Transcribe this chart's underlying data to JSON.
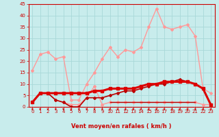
{
  "title": "",
  "xlabel": "Vent moyen/en rafales ( km/h )",
  "ylabel": "",
  "bg_color": "#c8ecec",
  "grid_color": "#a8d8d8",
  "x_ticks": [
    0,
    1,
    2,
    3,
    4,
    5,
    6,
    7,
    8,
    9,
    10,
    11,
    12,
    13,
    14,
    15,
    16,
    17,
    18,
    19,
    20,
    21,
    22,
    23
  ],
  "y_ticks": [
    0,
    5,
    10,
    15,
    20,
    25,
    30,
    35,
    40,
    45
  ],
  "xlim": [
    -0.5,
    23.5
  ],
  "ylim": [
    0,
    45
  ],
  "lines": [
    {
      "x": [
        0,
        1,
        2,
        3,
        4,
        5,
        6,
        7,
        8,
        9,
        10,
        11,
        12,
        13,
        14,
        15,
        16,
        17,
        18,
        19,
        20,
        21,
        22,
        23
      ],
      "y": [
        16,
        23,
        24,
        21,
        22,
        3,
        3,
        10,
        15,
        21,
        26,
        22,
        25,
        24,
        26,
        35,
        43,
        35,
        34,
        35,
        36,
        31,
        8,
        6
      ],
      "color": "#ff9999",
      "lw": 1.0,
      "marker": "D",
      "ms": 2.0,
      "zorder": 3
    },
    {
      "x": [
        0,
        1,
        2,
        3,
        4,
        5,
        6,
        7,
        8,
        9,
        10,
        11,
        12,
        13,
        14,
        15,
        16,
        17,
        18,
        19,
        20,
        21,
        22,
        23
      ],
      "y": [
        2,
        6,
        6,
        3,
        2,
        1,
        1,
        4,
        9,
        1,
        2,
        2,
        2,
        2,
        2,
        2,
        2,
        2,
        2,
        2,
        2,
        2,
        1,
        1
      ],
      "color": "#ff9999",
      "lw": 1.0,
      "marker": "D",
      "ms": 2.0,
      "zorder": 3
    },
    {
      "x": [
        0,
        1,
        2,
        3,
        4,
        5,
        6,
        7,
        8,
        9,
        10,
        11,
        12,
        13,
        14,
        15,
        16,
        17,
        18,
        19,
        20,
        21,
        22,
        23
      ],
      "y": [
        2,
        6,
        6,
        6,
        6,
        6,
        6,
        6,
        7,
        7,
        8,
        8,
        8,
        8,
        9,
        10,
        10,
        11,
        11,
        11,
        11,
        10,
        8,
        1
      ],
      "color": "#dd0000",
      "lw": 2.2,
      "marker": "s",
      "ms": 2.5,
      "zorder": 5
    },
    {
      "x": [
        0,
        1,
        2,
        3,
        4,
        5,
        6,
        7,
        8,
        9,
        10,
        11,
        12,
        13,
        14,
        15,
        16,
        17,
        18,
        19,
        20,
        21,
        22,
        23
      ],
      "y": [
        2,
        6,
        6,
        3,
        2,
        0,
        0,
        4,
        4,
        4,
        5,
        6,
        7,
        7,
        8,
        9,
        10,
        10,
        11,
        12,
        11,
        10,
        8,
        1
      ],
      "color": "#bb0000",
      "lw": 1.2,
      "marker": "D",
      "ms": 2.0,
      "zorder": 4
    },
    {
      "x": [
        10,
        11,
        12,
        13,
        14,
        15,
        16,
        17,
        18,
        19,
        20,
        21
      ],
      "y": [
        2,
        2,
        2,
        2,
        2,
        2,
        2,
        2,
        2,
        2,
        2,
        2
      ],
      "color": "#bb0000",
      "lw": 1.0,
      "marker": null,
      "ms": 0,
      "zorder": 4
    }
  ],
  "tick_fontsize": 5.0,
  "label_fontsize": 6.0
}
